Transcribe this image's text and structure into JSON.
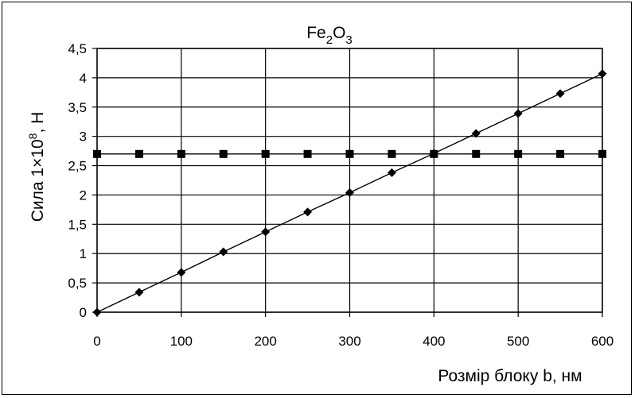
{
  "chart_data": {
    "type": "line",
    "title_main": "Fe",
    "title_sub1": "2",
    "title_mid": "O",
    "title_sub2": "3",
    "xlabel": "Розмір блоку b, нм",
    "ylabel_main": "Сила 1×10",
    "ylabel_sup": "8",
    "ylabel_unit": ", Н",
    "xlim": [
      0,
      600
    ],
    "ylim": [
      0,
      4.5
    ],
    "x_ticks": [
      0,
      100,
      200,
      300,
      400,
      500,
      600
    ],
    "x_tick_labels": [
      "0",
      "100",
      "200",
      "300",
      "400",
      "500",
      "600"
    ],
    "y_ticks": [
      0,
      0.5,
      1,
      1.5,
      2,
      2.5,
      3,
      3.5,
      4,
      4.5
    ],
    "y_tick_labels": [
      "0",
      "0,5",
      "1",
      "1,5",
      "2",
      "2,5",
      "3",
      "3,5",
      "4",
      "4,5"
    ],
    "grid": true,
    "series": [
      {
        "marker": "diamond",
        "color": "#000000",
        "x": [
          0,
          50,
          100,
          150,
          200,
          250,
          300,
          350,
          400,
          450,
          500,
          550,
          600
        ],
        "y": [
          0,
          0.34,
          0.68,
          1.03,
          1.37,
          1.71,
          2.04,
          2.38,
          2.71,
          3.05,
          3.39,
          3.73,
          4.07
        ]
      },
      {
        "marker": "square",
        "color": "#000000",
        "x": [
          0,
          50,
          100,
          150,
          200,
          250,
          300,
          350,
          400,
          450,
          500,
          550,
          600
        ],
        "y": [
          2.7,
          2.7,
          2.7,
          2.7,
          2.7,
          2.7,
          2.7,
          2.7,
          2.7,
          2.7,
          2.7,
          2.7,
          2.7
        ]
      }
    ]
  }
}
